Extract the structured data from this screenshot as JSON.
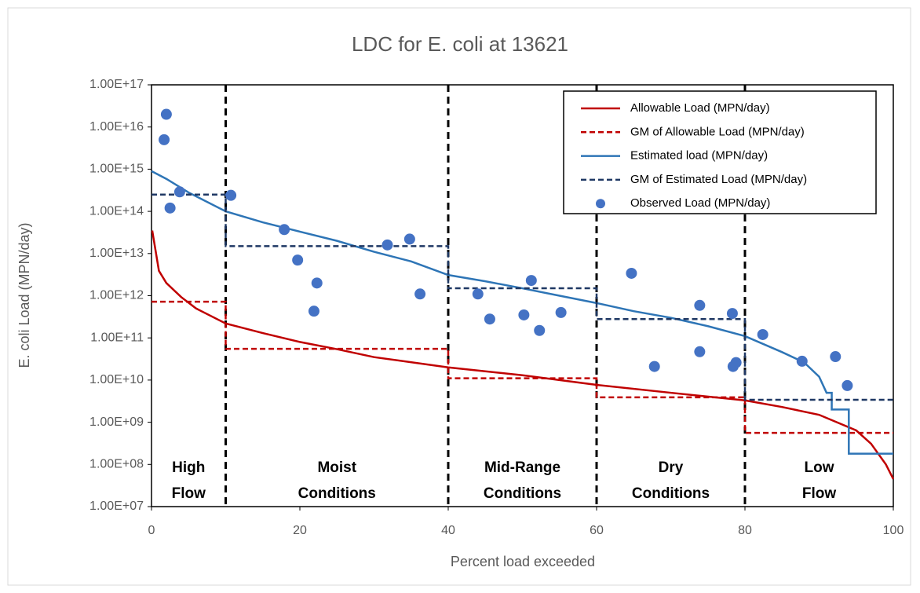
{
  "chart_data": {
    "type": "line",
    "title": "LDC for E. coli at 13621",
    "x_label": "Percent load exceeded",
    "y_label": "E. coli  Load (MPN/day)",
    "log_y": true,
    "xlim": [
      0,
      100
    ],
    "xticks": [
      0,
      20,
      40,
      60,
      80,
      100
    ],
    "ylim": [
      10000000.0,
      1e+17
    ],
    "yticks": [
      {
        "value": 10000000.0,
        "label": "1.00E+07"
      },
      {
        "value": 100000000.0,
        "label": "1.00E+08"
      },
      {
        "value": 1000000000.0,
        "label": "1.00E+09"
      },
      {
        "value": 10000000000.0,
        "label": "1.00E+10"
      },
      {
        "value": 100000000000.0,
        "label": "1.00E+11"
      },
      {
        "value": 1000000000000.0,
        "label": "1.00E+12"
      },
      {
        "value": 10000000000000.0,
        "label": "1.00E+13"
      },
      {
        "value": 100000000000000.0,
        "label": "1.00E+14"
      },
      {
        "value": 1000000000000000.0,
        "label": "1.00E+15"
      },
      {
        "value": 1e+16,
        "label": "1.00E+16"
      },
      {
        "value": 1e+17,
        "label": "1.00E+17"
      }
    ],
    "legend": "upper right",
    "vlines": [
      10,
      40,
      60,
      80
    ],
    "regions": [
      [
        "High",
        "Flow"
      ],
      [
        "Moist",
        "Conditions"
      ],
      [
        "Mid-Range",
        "Conditions"
      ],
      [
        "Dry",
        "Conditions"
      ],
      [
        "Low",
        "Flow"
      ]
    ],
    "series": [
      {
        "name": "Allowable Load (MPN/day)",
        "color": "#c00000",
        "style": "solid",
        "kind": "line",
        "x": [
          0.1,
          1,
          2,
          4,
          6,
          10,
          15,
          20,
          25,
          30,
          40,
          50,
          60,
          70,
          80,
          85,
          90,
          95,
          97,
          99,
          100
        ],
        "values": [
          35000000000000.0,
          3900000000000.0,
          2000000000000.0,
          930000000000.0,
          500000000000.0,
          220000000000.0,
          130000000000.0,
          80000000000.0,
          54000000000.0,
          35000000000.0,
          20000000000.0,
          13000000000.0,
          7700000000.0,
          5000000000.0,
          3300000000.0,
          2300000000.0,
          1500000000.0,
          640000000.0,
          310000000.0,
          100000000.0,
          45000000.0
        ]
      },
      {
        "name": "GM of Allowable Load (MPN/day)",
        "color": "#c00000",
        "style": "dashed",
        "kind": "line",
        "x": [
          0,
          10,
          10,
          40,
          40,
          60,
          60,
          80,
          80,
          100
        ],
        "values": [
          720000000000.0,
          720000000000.0,
          55000000000.0,
          55000000000.0,
          11000000000.0,
          11000000000.0,
          3900000000.0,
          3900000000.0,
          560000000.0,
          560000000.0
        ]
      },
      {
        "name": "Estimated load (MPN/day)",
        "color": "#2e75b6",
        "style": "solid",
        "kind": "line",
        "x": [
          0,
          2,
          5,
          10,
          15,
          20,
          25,
          30,
          35,
          40,
          45,
          50,
          55,
          60,
          65,
          70,
          75,
          80,
          85,
          88,
          90,
          91,
          91.7,
          91.7,
          94,
          94,
          100
        ],
        "values": [
          900000000000000.0,
          590000000000000.0,
          280000000000000.0,
          100000000000000.0,
          55000000000000.0,
          33000000000000.0,
          20000000000000.0,
          11000000000000.0,
          6500000000000.0,
          3100000000000.0,
          2200000000000.0,
          1500000000000.0,
          1000000000000.0,
          670000000000.0,
          430000000000.0,
          300000000000.0,
          190000000000.0,
          110000000000.0,
          46000000000.0,
          26000000000.0,
          12000000000.0,
          5000000000.0,
          5000000000.0,
          2000000000.0,
          2000000000.0,
          180000000.0,
          180000000.0
        ]
      },
      {
        "name": "GM of Estimated Load (MPN/day)",
        "color": "#1f3864",
        "style": "dashed",
        "kind": "line",
        "x": [
          0,
          10,
          10,
          40,
          40,
          60,
          60,
          80,
          80,
          100
        ],
        "values": [
          250000000000000.0,
          250000000000000.0,
          15000000000000.0,
          15000000000000.0,
          1500000000000.0,
          1500000000000.0,
          280000000000.0,
          280000000000.0,
          3400000000.0,
          3400000000.0
        ]
      },
      {
        "name": "Observed Load (MPN/day)",
        "color": "#4472c4",
        "kind": "scatter",
        "x": [
          2,
          1.7,
          2.5,
          3.8,
          10.7,
          17.9,
          19.7,
          21.9,
          22.3,
          31.8,
          34.8,
          36.2,
          44.0,
          45.6,
          50.2,
          51.2,
          52.3,
          55.2,
          64.7,
          67.8,
          73.9,
          73.9,
          78.3,
          78.4,
          78.8,
          82.4,
          87.7,
          92.2,
          93.8
        ],
        "values": [
          2e+16,
          5000000000000000.0,
          120000000000000.0,
          290000000000000.0,
          240000000000000.0,
          37000000000000.0,
          7000000000000.0,
          430000000000.0,
          2000000000000.0,
          16000000000000.0,
          22000000000000.0,
          1100000000000.0,
          1100000000000.0,
          280000000000.0,
          350000000000.0,
          2300000000000.0,
          150000000000.0,
          400000000000.0,
          3400000000000.0,
          21000000000.0,
          47000000000.0,
          590000000000.0,
          380000000000.0,
          21000000000.0,
          26000000000.0,
          120000000000.0,
          28000000000.0,
          36000000000.0,
          7400000000.0
        ]
      }
    ]
  }
}
